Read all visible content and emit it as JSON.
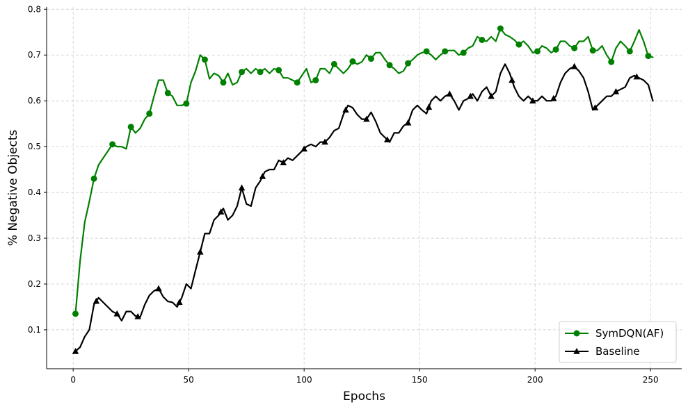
{
  "chart_data": {
    "type": "line",
    "title": "",
    "xlabel": "Epochs",
    "ylabel": "% Negative Objects",
    "xlim": [
      -11.5,
      263.5
    ],
    "ylim": [
      0.015,
      0.805
    ],
    "xticks": [
      0,
      50,
      100,
      150,
      200,
      250
    ],
    "yticks": [
      0.1,
      0.2,
      0.3,
      0.4,
      0.5,
      0.6,
      0.7,
      0.8
    ],
    "grid": true,
    "legend_position": "bottom-right",
    "colors": {
      "green": "#008000",
      "black": "#000000"
    },
    "series": [
      {
        "name": "SymDQN(AF)",
        "color": "#008000",
        "marker": "circle",
        "marker_x": [
          1,
          9,
          17,
          25,
          33,
          41,
          49,
          57,
          65,
          73,
          81,
          89,
          97,
          105,
          113,
          121,
          129,
          137,
          145,
          153,
          161,
          169,
          177,
          185,
          193,
          201,
          209,
          217,
          225,
          233,
          241,
          249
        ],
        "x": [
          1,
          3,
          5,
          7,
          9,
          11,
          13,
          15,
          17,
          19,
          21,
          23,
          25,
          27,
          29,
          31,
          33,
          35,
          37,
          39,
          41,
          43,
          45,
          47,
          49,
          51,
          53,
          55,
          57,
          59,
          61,
          63,
          65,
          67,
          69,
          71,
          73,
          75,
          77,
          79,
          81,
          83,
          85,
          87,
          89,
          91,
          93,
          95,
          97,
          99,
          101,
          103,
          105,
          107,
          109,
          111,
          113,
          115,
          117,
          119,
          121,
          123,
          125,
          127,
          129,
          131,
          133,
          135,
          137,
          139,
          141,
          143,
          145,
          147,
          149,
          151,
          153,
          155,
          157,
          159,
          161,
          163,
          165,
          167,
          169,
          171,
          173,
          175,
          177,
          179,
          181,
          183,
          185,
          187,
          189,
          191,
          193,
          195,
          197,
          199,
          201,
          203,
          205,
          207,
          209,
          211,
          213,
          215,
          217,
          219,
          221,
          223,
          225,
          227,
          229,
          231,
          233,
          235,
          237,
          239,
          241,
          243,
          245,
          247,
          249,
          251
        ],
        "y": [
          0.135,
          0.25,
          0.335,
          0.38,
          0.43,
          0.46,
          0.475,
          0.49,
          0.505,
          0.5,
          0.5,
          0.495,
          0.543,
          0.53,
          0.54,
          0.56,
          0.572,
          0.61,
          0.645,
          0.645,
          0.617,
          0.61,
          0.59,
          0.59,
          0.594,
          0.64,
          0.665,
          0.7,
          0.69,
          0.648,
          0.66,
          0.655,
          0.64,
          0.66,
          0.635,
          0.64,
          0.663,
          0.67,
          0.66,
          0.67,
          0.663,
          0.67,
          0.66,
          0.67,
          0.667,
          0.65,
          0.65,
          0.645,
          0.64,
          0.655,
          0.67,
          0.64,
          0.645,
          0.67,
          0.67,
          0.66,
          0.68,
          0.67,
          0.66,
          0.67,
          0.686,
          0.68,
          0.685,
          0.7,
          0.692,
          0.705,
          0.705,
          0.69,
          0.678,
          0.67,
          0.66,
          0.665,
          0.682,
          0.69,
          0.7,
          0.705,
          0.708,
          0.7,
          0.69,
          0.7,
          0.708,
          0.71,
          0.71,
          0.7,
          0.705,
          0.715,
          0.72,
          0.74,
          0.733,
          0.73,
          0.74,
          0.73,
          0.758,
          0.745,
          0.74,
          0.733,
          0.723,
          0.73,
          0.72,
          0.705,
          0.708,
          0.72,
          0.715,
          0.705,
          0.712,
          0.73,
          0.73,
          0.72,
          0.715,
          0.73,
          0.73,
          0.74,
          0.71,
          0.71,
          0.72,
          0.7,
          0.685,
          0.715,
          0.73,
          0.72,
          0.708,
          0.73,
          0.755,
          0.73,
          0.698,
          0.695
        ]
      },
      {
        "name": "Baseline",
        "color": "#000000",
        "marker": "triangle",
        "marker_x": [
          1,
          10,
          19,
          28,
          37,
          46,
          55,
          64,
          73,
          82,
          91,
          100,
          109,
          118,
          127,
          136,
          145,
          154,
          163,
          172,
          181,
          190,
          199,
          208,
          217,
          226,
          235,
          244
        ],
        "x": [
          1,
          3,
          5,
          7,
          9,
          11,
          13,
          15,
          17,
          19,
          21,
          23,
          25,
          27,
          29,
          31,
          33,
          35,
          37,
          39,
          41,
          43,
          45,
          47,
          49,
          51,
          53,
          55,
          57,
          59,
          61,
          63,
          65,
          67,
          69,
          71,
          73,
          75,
          77,
          79,
          81,
          83,
          85,
          87,
          89,
          91,
          93,
          95,
          97,
          99,
          101,
          103,
          105,
          107,
          109,
          111,
          113,
          115,
          117,
          119,
          121,
          123,
          125,
          127,
          129,
          131,
          133,
          135,
          137,
          139,
          141,
          143,
          145,
          147,
          149,
          151,
          153,
          155,
          157,
          159,
          161,
          163,
          165,
          167,
          169,
          171,
          173,
          175,
          177,
          179,
          181,
          183,
          185,
          187,
          189,
          191,
          193,
          195,
          197,
          199,
          201,
          203,
          205,
          207,
          209,
          211,
          213,
          215,
          217,
          219,
          221,
          223,
          225,
          227,
          229,
          231,
          233,
          235,
          237,
          239,
          241,
          243,
          245,
          247,
          249,
          251
        ],
        "y": [
          0.053,
          0.062,
          0.085,
          0.1,
          0.155,
          0.17,
          0.16,
          0.15,
          0.14,
          0.135,
          0.12,
          0.14,
          0.14,
          0.13,
          0.128,
          0.155,
          0.175,
          0.185,
          0.19,
          0.172,
          0.162,
          0.16,
          0.15,
          0.17,
          0.2,
          0.19,
          0.23,
          0.27,
          0.31,
          0.31,
          0.34,
          0.35,
          0.365,
          0.34,
          0.35,
          0.37,
          0.41,
          0.375,
          0.37,
          0.41,
          0.425,
          0.445,
          0.45,
          0.45,
          0.47,
          0.465,
          0.475,
          0.47,
          0.48,
          0.49,
          0.5,
          0.505,
          0.5,
          0.51,
          0.51,
          0.52,
          0.535,
          0.54,
          0.57,
          0.59,
          0.585,
          0.57,
          0.56,
          0.56,
          0.575,
          0.555,
          0.53,
          0.52,
          0.51,
          0.53,
          0.53,
          0.545,
          0.552,
          0.58,
          0.59,
          0.58,
          0.572,
          0.6,
          0.61,
          0.6,
          0.61,
          0.615,
          0.6,
          0.58,
          0.6,
          0.605,
          0.615,
          0.6,
          0.62,
          0.63,
          0.61,
          0.62,
          0.66,
          0.68,
          0.66,
          0.63,
          0.61,
          0.6,
          0.61,
          0.6,
          0.6,
          0.61,
          0.6,
          0.6,
          0.61,
          0.64,
          0.66,
          0.67,
          0.675,
          0.665,
          0.65,
          0.62,
          0.58,
          0.59,
          0.6,
          0.61,
          0.61,
          0.62,
          0.625,
          0.63,
          0.65,
          0.655,
          0.65,
          0.645,
          0.635,
          0.6
        ]
      }
    ]
  }
}
